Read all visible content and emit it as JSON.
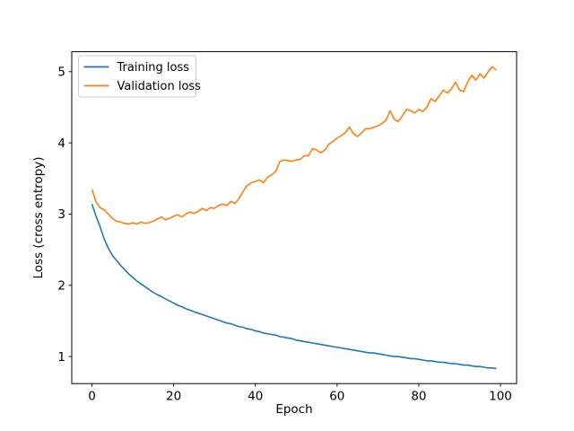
{
  "colors": {
    "background": "#ffffff",
    "text": "#000000",
    "spine": "#000000",
    "legend_border": "#cccccc",
    "training": "#1f77b4",
    "validation": "#ff7f0e"
  },
  "chart_data": {
    "type": "line",
    "title": "",
    "xlabel": "Epoch",
    "ylabel": "Loss (cross entropy)",
    "xlim": [
      -4.95,
      103.95
    ],
    "ylim": [
      0.62,
      5.28
    ],
    "x_ticks": [
      0,
      20,
      40,
      60,
      80,
      100
    ],
    "y_ticks": [
      1,
      2,
      3,
      4,
      5
    ],
    "grid": false,
    "legend_position": "upper left",
    "x": [
      0,
      1,
      2,
      3,
      4,
      5,
      6,
      7,
      8,
      9,
      10,
      11,
      12,
      13,
      14,
      15,
      16,
      17,
      18,
      19,
      20,
      21,
      22,
      23,
      24,
      25,
      26,
      27,
      28,
      29,
      30,
      31,
      32,
      33,
      34,
      35,
      36,
      37,
      38,
      39,
      40,
      41,
      42,
      43,
      44,
      45,
      46,
      47,
      48,
      49,
      50,
      51,
      52,
      53,
      54,
      55,
      56,
      57,
      58,
      59,
      60,
      61,
      62,
      63,
      64,
      65,
      66,
      67,
      68,
      69,
      70,
      71,
      72,
      73,
      74,
      75,
      76,
      77,
      78,
      79,
      80,
      81,
      82,
      83,
      84,
      85,
      86,
      87,
      88,
      89,
      90,
      91,
      92,
      93,
      94,
      95,
      96,
      97,
      98,
      99
    ],
    "series": [
      {
        "name": "Training loss",
        "color": "#1f77b4",
        "values": [
          3.14,
          2.97,
          2.82,
          2.65,
          2.52,
          2.42,
          2.35,
          2.28,
          2.22,
          2.16,
          2.11,
          2.06,
          2.02,
          1.98,
          1.94,
          1.9,
          1.87,
          1.84,
          1.81,
          1.78,
          1.75,
          1.72,
          1.7,
          1.67,
          1.65,
          1.63,
          1.61,
          1.59,
          1.57,
          1.55,
          1.53,
          1.51,
          1.49,
          1.47,
          1.46,
          1.44,
          1.42,
          1.41,
          1.39,
          1.38,
          1.36,
          1.35,
          1.33,
          1.32,
          1.31,
          1.3,
          1.28,
          1.27,
          1.26,
          1.25,
          1.23,
          1.22,
          1.21,
          1.2,
          1.19,
          1.18,
          1.17,
          1.16,
          1.15,
          1.14,
          1.13,
          1.12,
          1.11,
          1.1,
          1.09,
          1.08,
          1.07,
          1.06,
          1.05,
          1.05,
          1.04,
          1.03,
          1.02,
          1.01,
          1.0,
          1.0,
          0.99,
          0.98,
          0.97,
          0.97,
          0.96,
          0.95,
          0.94,
          0.94,
          0.93,
          0.92,
          0.92,
          0.91,
          0.9,
          0.9,
          0.89,
          0.88,
          0.88,
          0.87,
          0.86,
          0.86,
          0.85,
          0.84,
          0.84,
          0.83
        ]
      },
      {
        "name": "Validation loss",
        "color": "#ff7f0e",
        "values": [
          3.35,
          3.17,
          3.09,
          3.06,
          3.0,
          2.94,
          2.9,
          2.89,
          2.87,
          2.86,
          2.88,
          2.86,
          2.89,
          2.87,
          2.88,
          2.9,
          2.93,
          2.96,
          2.92,
          2.94,
          2.97,
          2.99,
          2.96,
          3.0,
          3.03,
          3.01,
          3.04,
          3.08,
          3.05,
          3.09,
          3.08,
          3.12,
          3.14,
          3.12,
          3.18,
          3.15,
          3.22,
          3.32,
          3.4,
          3.44,
          3.46,
          3.48,
          3.44,
          3.52,
          3.55,
          3.6,
          3.74,
          3.76,
          3.75,
          3.74,
          3.76,
          3.77,
          3.82,
          3.82,
          3.92,
          3.9,
          3.86,
          3.9,
          3.98,
          4.02,
          4.07,
          4.1,
          4.14,
          4.22,
          4.13,
          4.09,
          4.14,
          4.2,
          4.2,
          4.22,
          4.24,
          4.27,
          4.32,
          4.45,
          4.33,
          4.3,
          4.38,
          4.47,
          4.45,
          4.42,
          4.47,
          4.44,
          4.5,
          4.62,
          4.58,
          4.66,
          4.74,
          4.7,
          4.76,
          4.85,
          4.74,
          4.72,
          4.86,
          4.95,
          4.88,
          4.97,
          4.91,
          5.0,
          5.07,
          5.02
        ]
      }
    ]
  }
}
